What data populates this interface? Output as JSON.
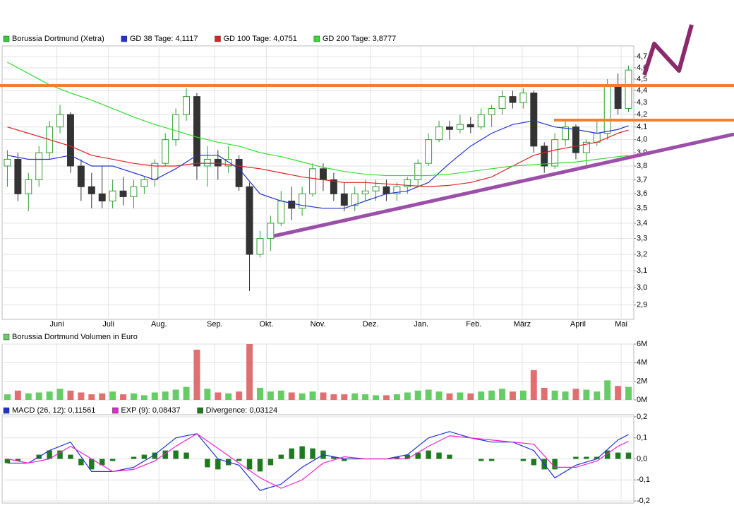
{
  "chart_data": [
    {
      "type": "candlestick",
      "series": {
        "name": "Borussia Dortmund (Xetra)",
        "color": "#33cc33",
        "up_color": "#2f9e2f",
        "down_color": "#333333",
        "open": [
          3.8,
          3.85,
          3.6,
          3.7,
          3.9,
          4.1,
          4.2,
          3.8,
          3.65,
          3.6,
          3.55,
          3.62,
          3.58,
          3.65,
          3.7,
          3.82,
          4.0,
          4.2,
          4.35,
          3.8,
          3.85,
          3.8,
          3.85,
          3.65,
          3.2,
          3.3,
          3.4,
          3.55,
          3.5,
          3.6,
          3.78,
          3.7,
          3.6,
          3.52,
          3.6,
          3.62,
          3.65,
          3.6,
          3.65,
          3.7,
          3.82,
          4.0,
          4.1,
          4.08,
          4.12,
          4.1,
          4.2,
          4.25,
          4.35,
          4.3,
          4.38,
          3.95,
          3.8,
          4.0,
          4.1,
          3.9,
          3.98,
          4.05,
          4.45,
          4.25
        ],
        "high": [
          3.92,
          3.9,
          3.75,
          3.95,
          4.15,
          4.28,
          4.22,
          3.85,
          3.75,
          3.8,
          3.7,
          3.72,
          3.7,
          3.72,
          3.85,
          4.05,
          4.25,
          4.42,
          4.38,
          3.95,
          3.92,
          3.95,
          3.88,
          3.68,
          3.35,
          3.45,
          3.62,
          3.65,
          3.65,
          3.82,
          3.82,
          3.75,
          3.68,
          3.65,
          3.7,
          3.7,
          3.7,
          3.68,
          3.72,
          3.85,
          4.05,
          4.15,
          4.15,
          4.2,
          4.18,
          4.25,
          4.28,
          4.4,
          4.4,
          4.42,
          4.4,
          3.98,
          4.05,
          4.15,
          4.12,
          4.0,
          4.15,
          4.5,
          4.55,
          4.62
        ],
        "low": [
          3.65,
          3.55,
          3.48,
          3.65,
          3.85,
          4.05,
          3.75,
          3.55,
          3.5,
          3.5,
          3.5,
          3.52,
          3.5,
          3.6,
          3.65,
          3.8,
          3.95,
          4.15,
          3.7,
          3.65,
          3.7,
          3.75,
          3.62,
          2.98,
          3.18,
          3.22,
          3.38,
          3.42,
          3.45,
          3.58,
          3.62,
          3.55,
          3.48,
          3.48,
          3.55,
          3.55,
          3.55,
          3.55,
          3.6,
          3.65,
          3.8,
          3.98,
          4.0,
          4.05,
          4.05,
          4.08,
          4.1,
          4.2,
          4.25,
          4.25,
          3.9,
          3.75,
          3.78,
          3.95,
          3.85,
          3.8,
          3.95,
          4.0,
          4.2,
          4.22
        ],
        "close": [
          3.85,
          3.6,
          3.7,
          3.9,
          4.1,
          4.2,
          3.8,
          3.65,
          3.6,
          3.55,
          3.62,
          3.58,
          3.65,
          3.7,
          3.82,
          4.0,
          4.2,
          4.35,
          3.8,
          3.85,
          3.8,
          3.85,
          3.65,
          3.2,
          3.3,
          3.4,
          3.55,
          3.5,
          3.6,
          3.78,
          3.7,
          3.6,
          3.52,
          3.6,
          3.62,
          3.65,
          3.6,
          3.65,
          3.7,
          3.82,
          4.0,
          4.1,
          4.08,
          4.12,
          4.1,
          4.2,
          4.25,
          4.35,
          4.3,
          4.38,
          3.95,
          3.8,
          4.0,
          4.1,
          3.9,
          3.98,
          4.05,
          4.45,
          4.25,
          4.58
        ]
      },
      "overlays": [
        {
          "name": "GD 38 Tage: 4,1117",
          "color": "#2233cc",
          "x": [
            0,
            2,
            4,
            6,
            8,
            10,
            12,
            14,
            16,
            18,
            20,
            22,
            24,
            26,
            28,
            30,
            32,
            34,
            36,
            38,
            40,
            42,
            44,
            46,
            48,
            50,
            52,
            54,
            56,
            58,
            59
          ],
          "values": [
            3.88,
            3.85,
            3.85,
            3.88,
            3.8,
            3.8,
            3.75,
            3.7,
            3.78,
            3.88,
            3.88,
            3.78,
            3.6,
            3.55,
            3.52,
            3.5,
            3.5,
            3.55,
            3.6,
            3.62,
            3.68,
            3.82,
            3.95,
            4.05,
            4.12,
            4.15,
            4.1,
            4.08,
            4.05,
            4.08,
            4.11
          ]
        },
        {
          "name": "GD 100 Tage: 4,0751",
          "color": "#dd2222",
          "x": [
            0,
            2,
            4,
            6,
            8,
            10,
            12,
            14,
            16,
            18,
            20,
            22,
            24,
            26,
            28,
            30,
            32,
            34,
            36,
            38,
            40,
            42,
            44,
            46,
            48,
            50,
            52,
            54,
            56,
            58,
            59
          ],
          "values": [
            4.1,
            4.05,
            4.0,
            3.95,
            3.88,
            3.85,
            3.82,
            3.8,
            3.8,
            3.82,
            3.82,
            3.8,
            3.78,
            3.75,
            3.72,
            3.7,
            3.68,
            3.68,
            3.67,
            3.66,
            3.65,
            3.66,
            3.68,
            3.72,
            3.8,
            3.88,
            3.92,
            3.95,
            3.98,
            4.05,
            4.075
          ]
        },
        {
          "name": "GD 200 Tage: 3,8777",
          "color": "#33dd33",
          "x": [
            0,
            2,
            4,
            6,
            8,
            10,
            12,
            14,
            16,
            18,
            20,
            22,
            24,
            26,
            28,
            30,
            32,
            34,
            36,
            38,
            40,
            42,
            44,
            46,
            48,
            50,
            52,
            54,
            56,
            58,
            59
          ],
          "values": [
            4.65,
            4.55,
            4.45,
            4.38,
            4.32,
            4.25,
            4.18,
            4.12,
            4.07,
            4.02,
            3.98,
            3.95,
            3.9,
            3.87,
            3.83,
            3.79,
            3.76,
            3.74,
            3.73,
            3.73,
            3.73,
            3.74,
            3.76,
            3.78,
            3.8,
            3.81,
            3.82,
            3.83,
            3.85,
            3.87,
            3.878
          ]
        }
      ],
      "log_scale": true,
      "grid": true,
      "xlim": [
        -0.5,
        59.5
      ],
      "xticks": [
        {
          "value": 4.7,
          "label": "Juni"
        },
        {
          "value": 9.6,
          "label": "Juli"
        },
        {
          "value": 14.4,
          "label": "Aug."
        },
        {
          "value": 19.7,
          "label": "Sep."
        },
        {
          "value": 24.6,
          "label": "Okt."
        },
        {
          "value": 29.5,
          "label": "Nov."
        },
        {
          "value": 34.5,
          "label": "Dez."
        },
        {
          "value": 39.3,
          "label": "Jan."
        },
        {
          "value": 44.3,
          "label": "Feb."
        },
        {
          "value": 48.9,
          "label": "März"
        },
        {
          "value": 54.2,
          "label": "April"
        },
        {
          "value": 58.3,
          "label": "Mai"
        }
      ],
      "ylim": [
        2.82,
        4.8
      ],
      "yticks": [
        {
          "value": 4.7,
          "label": "4,7"
        },
        {
          "value": 4.6,
          "label": "4,6"
        },
        {
          "value": 4.5,
          "label": "4,5"
        },
        {
          "value": 4.4,
          "label": "4,4"
        },
        {
          "value": 4.3,
          "label": "4,3"
        },
        {
          "value": 4.2,
          "label": "4,2"
        },
        {
          "value": 4.1,
          "label": "4,1"
        },
        {
          "value": 4.0,
          "label": "4,0"
        },
        {
          "value": 3.9,
          "label": "3,9"
        },
        {
          "value": 3.8,
          "label": "3,8"
        },
        {
          "value": 3.7,
          "label": "3,7"
        },
        {
          "value": 3.6,
          "label": "3,6"
        },
        {
          "value": 3.5,
          "label": "3,5"
        },
        {
          "value": 3.4,
          "label": "3,4"
        },
        {
          "value": 3.3,
          "label": "3,3"
        },
        {
          "value": 3.2,
          "label": "3,2"
        },
        {
          "value": 3.1,
          "label": "3,1"
        },
        {
          "value": 3.0,
          "label": "3,0"
        },
        {
          "value": 2.9,
          "label": "2,9"
        }
      ]
    },
    {
      "type": "bar",
      "title": "Borussia Dortmund Volumen in Euro",
      "color": "#66cc66",
      "up_color": "#66cc66",
      "down_color": "#e07070",
      "values": [
        600000,
        1000000,
        700000,
        800000,
        900000,
        1200000,
        1000000,
        800000,
        600000,
        700000,
        900000,
        600000,
        700000,
        500000,
        800000,
        900000,
        1100000,
        1400000,
        5400000,
        1200000,
        800000,
        700000,
        900000,
        6000000,
        1300000,
        900000,
        1000000,
        800000,
        700000,
        900000,
        800000,
        600000,
        600000,
        700000,
        600000,
        500000,
        500000,
        600000,
        800000,
        1000000,
        1100000,
        900000,
        700000,
        800000,
        700000,
        900000,
        1000000,
        1200000,
        900000,
        1000000,
        3200000,
        1300000,
        1000000,
        900000,
        1200000,
        1100000,
        900000,
        2100000,
        1500000,
        1400000
      ],
      "ylim": [
        0,
        6000000
      ],
      "yticks": [
        {
          "value": 6000000,
          "label": "6M"
        },
        {
          "value": 4000000,
          "label": "4M"
        },
        {
          "value": 2000000,
          "label": "2M"
        },
        {
          "value": 0,
          "label": "0M"
        }
      ],
      "grid": true
    },
    {
      "type": "macd",
      "series": [
        {
          "name": "MACD (26, 12): 0,11561",
          "color": "#2233cc",
          "x": [
            0,
            2,
            4,
            6,
            8,
            10,
            12,
            14,
            16,
            18,
            20,
            22,
            24,
            26,
            28,
            30,
            32,
            34,
            36,
            38,
            40,
            42,
            44,
            46,
            48,
            50,
            52,
            54,
            56,
            58,
            59
          ],
          "values": [
            -0.02,
            -0.02,
            0.04,
            0.08,
            -0.06,
            -0.06,
            -0.04,
            0.02,
            0.1,
            0.12,
            0.0,
            -0.03,
            -0.15,
            -0.12,
            -0.04,
            0.02,
            0.0,
            0.0,
            0.0,
            0.02,
            0.1,
            0.13,
            0.1,
            0.08,
            0.08,
            0.04,
            -0.09,
            -0.03,
            0.0,
            0.09,
            0.116
          ]
        },
        {
          "name": "EXP (9): 0,08437",
          "color": "#ee22cc",
          "x": [
            0,
            2,
            4,
            6,
            8,
            10,
            12,
            14,
            16,
            18,
            20,
            22,
            24,
            26,
            28,
            30,
            32,
            34,
            36,
            38,
            40,
            42,
            44,
            46,
            48,
            50,
            52,
            54,
            56,
            58,
            59
          ],
          "values": [
            0.0,
            -0.02,
            0.0,
            0.06,
            0.0,
            -0.06,
            -0.05,
            -0.01,
            0.06,
            0.12,
            0.05,
            -0.02,
            -0.09,
            -0.14,
            -0.1,
            -0.02,
            0.01,
            0.0,
            0.0,
            0.0,
            0.06,
            0.11,
            0.1,
            0.09,
            0.08,
            0.07,
            -0.04,
            -0.04,
            -0.01,
            0.06,
            0.084
          ]
        }
      ],
      "divergence": {
        "name": "Divergence: 0,03124",
        "color": "#1e7a1e",
        "values": [
          -0.02,
          -0.01,
          0.0,
          0.02,
          0.04,
          0.04,
          0.02,
          -0.03,
          -0.05,
          -0.03,
          -0.01,
          0.0,
          0.01,
          0.02,
          0.03,
          0.04,
          0.04,
          0.03,
          0.0,
          -0.04,
          -0.05,
          -0.03,
          -0.01,
          -0.05,
          -0.06,
          -0.03,
          0.02,
          0.05,
          0.06,
          0.05,
          0.04,
          0.01,
          -0.01,
          0.0,
          0.0,
          0.0,
          0.0,
          0.01,
          0.02,
          0.03,
          0.04,
          0.03,
          0.02,
          0.0,
          0.0,
          -0.01,
          -0.01,
          0.0,
          0.0,
          -0.01,
          -0.03,
          -0.05,
          -0.05,
          0.0,
          0.01,
          0.01,
          0.01,
          0.04,
          0.03,
          0.03
        ]
      },
      "ylim": [
        -0.2,
        0.2
      ],
      "yticks": [
        {
          "value": 0.2,
          "label": "0,2"
        },
        {
          "value": 0.1,
          "label": "0,1"
        },
        {
          "value": 0.0,
          "label": "0,0"
        },
        {
          "value": -0.1,
          "label": "-0,1"
        },
        {
          "value": -0.2,
          "label": "-0,2"
        }
      ],
      "grid": true
    }
  ]
}
